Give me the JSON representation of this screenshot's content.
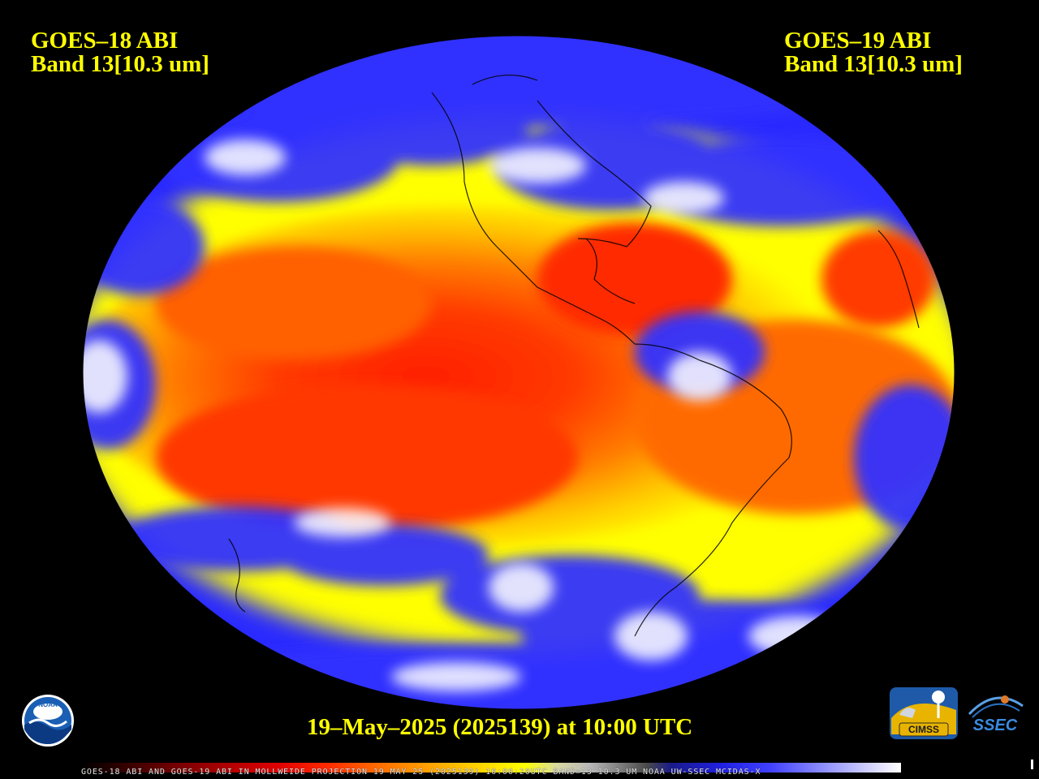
{
  "titles": {
    "left": {
      "satellite": "GOES–18 ABI",
      "band": "Band 13[10.3 um]"
    },
    "right": {
      "satellite": "GOES–19 ABI",
      "band": "Band 13[10.3 um]"
    }
  },
  "timestamp": "19–May–2025 (2025139) at 10:00 UTC",
  "footer": "GOES-18 ABI AND GOES-19 ABI IN MOLLWEIDE PROJECTION 19 MAY 25 (2025139) 10:00:20UTC BAND=13 10.3 UM NOAA UW-SSEC MCIDAS-X",
  "logos": {
    "noaa": "NOAA",
    "cimss": "CIMSS",
    "ssec": "SSEC"
  },
  "map": {
    "projection": "Mollweide",
    "product": "infrared brightness temperature",
    "colors": {
      "warm": "#ff2a00",
      "mid": "#ffff00",
      "cold": "#2a2aff",
      "coldest": "#ffffff",
      "background": "#000000"
    }
  },
  "icons": {
    "noaa": "noaa-logo-icon",
    "cimss": "cimss-logo-icon",
    "ssec": "ssec-logo-icon"
  }
}
